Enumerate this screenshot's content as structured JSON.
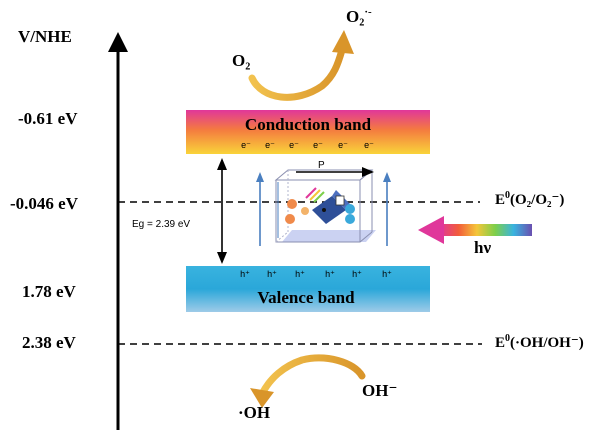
{
  "axis": {
    "label": "V/NHE",
    "levels": [
      {
        "value": "-0.61 eV"
      },
      {
        "value": "-0.046 eV"
      },
      {
        "value": "1.78 eV"
      },
      {
        "value": "2.38 eV"
      }
    ]
  },
  "bands": {
    "conduction": {
      "label": "Conduction band",
      "carrier": "e⁻"
    },
    "valence": {
      "label": "Valence band",
      "carrier": "h⁺"
    }
  },
  "bandgap": {
    "label": "Eg = 2.39 eV"
  },
  "polarization": {
    "label": "P"
  },
  "light": {
    "label": "hν"
  },
  "potentials": {
    "o2": {
      "prefix": "E",
      "sup": "0",
      "text": "(O₂/O₂⁻)",
      "sup_after": "·-"
    },
    "oh": {
      "prefix": "E",
      "sup": "0",
      "text": "(·OH/OH⁻)"
    }
  },
  "reactions": {
    "top": {
      "reactant": "O₂",
      "product": "O₂",
      "product_sup": "·-"
    },
    "bottom": {
      "reactant": "OH⁻",
      "product": "·OH"
    }
  },
  "colors": {
    "conduction_gradient": [
      "#e0379a",
      "#f47b3f",
      "#f9d43a"
    ],
    "valence_gradient": [
      "#9ecbe8",
      "#2aa7d9"
    ],
    "curved_arrow": "#e0a23a",
    "box_arrow": "#4a7fc0"
  }
}
